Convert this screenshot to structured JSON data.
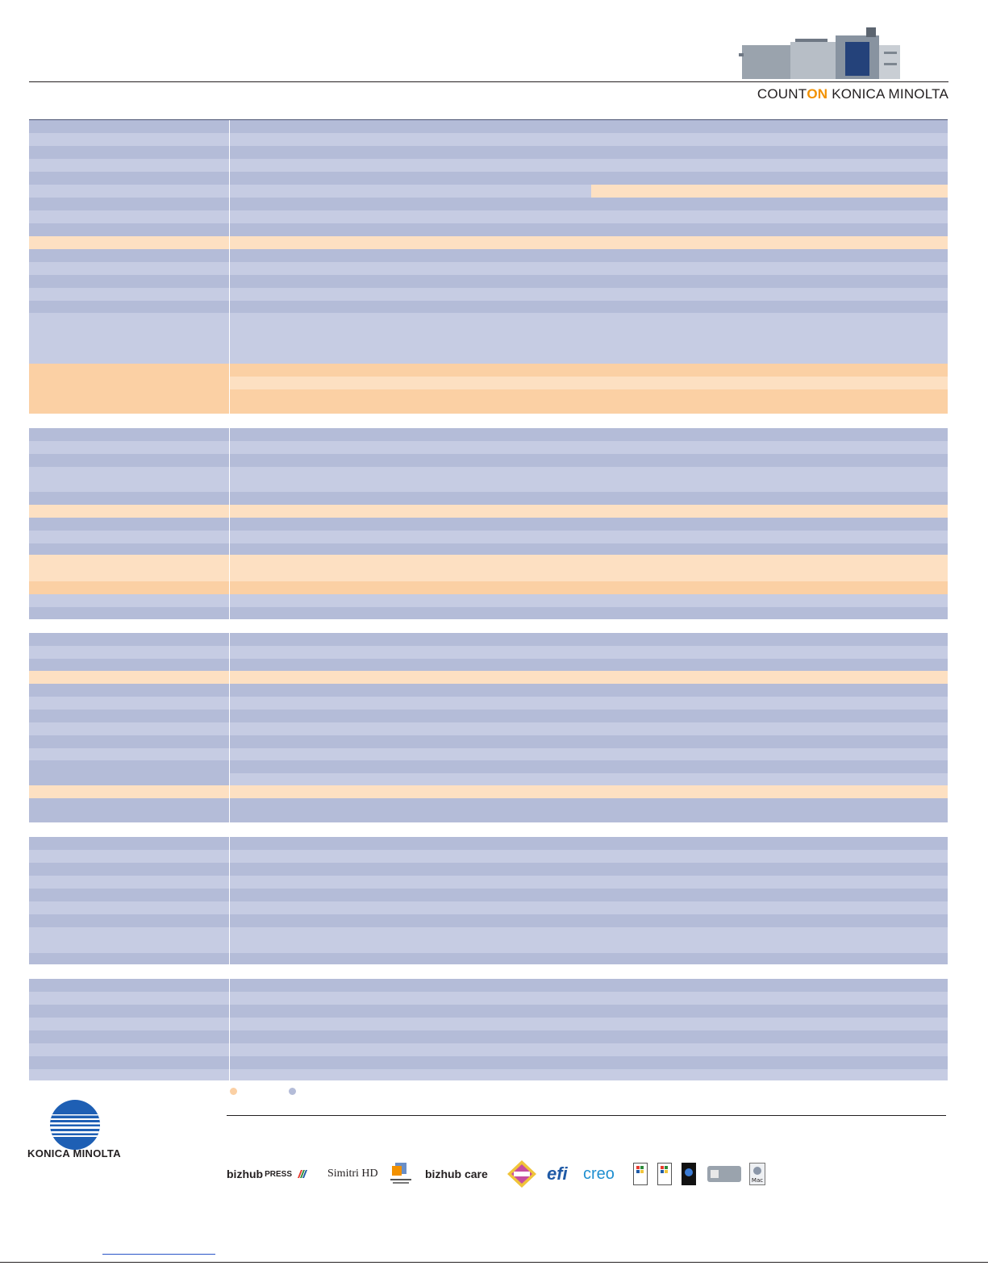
{
  "header": {
    "tagline_count": "COUNT",
    "tagline_on": "ON",
    "tagline_brand": "KONICA MINOLTA",
    "product_image_icon": "printer-product-photo"
  },
  "colors": {
    "blue_dark": "#b4bcd8",
    "blue_light": "#c6cce3",
    "orange_dark": "#fbd0a4",
    "orange_light": "#fde0c2",
    "rule": "#231f20",
    "accent_orange": "#f29100"
  },
  "table": {
    "row_groups": [
      {
        "group": 1,
        "rows": 24
      },
      {
        "group": 2,
        "rows": 15
      },
      {
        "group": 3,
        "rows": 16
      },
      {
        "group": 4,
        "rows": 10
      },
      {
        "group": 5,
        "rows": 8
      }
    ]
  },
  "legend": {
    "items": [
      {
        "color": "#fbd0a4",
        "icon": "orange-dot-icon"
      },
      {
        "color": "#b4bcd8",
        "icon": "blue-dot-icon"
      }
    ]
  },
  "footer": {
    "company_name": "KONICA MINOLTA",
    "logos": {
      "bizhub_press": "bizhub",
      "bizhub_press_suffix": "PRESS",
      "simitri": "Simitri HD",
      "bizhub_care": "bizhub care",
      "efi": "efi",
      "creo": "creo",
      "mac": "Mac"
    }
  }
}
